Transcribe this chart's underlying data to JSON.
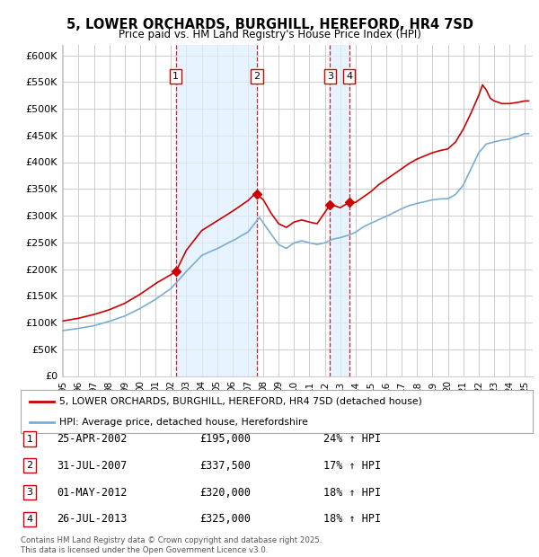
{
  "title": "5, LOWER ORCHARDS, BURGHILL, HEREFORD, HR4 7SD",
  "subtitle": "Price paid vs. HM Land Registry's House Price Index (HPI)",
  "ylim": [
    0,
    620000
  ],
  "yticks": [
    0,
    50000,
    100000,
    150000,
    200000,
    250000,
    300000,
    350000,
    400000,
    450000,
    500000,
    550000,
    600000
  ],
  "ytick_labels": [
    "£0",
    "£50K",
    "£100K",
    "£150K",
    "£200K",
    "£250K",
    "£300K",
    "£350K",
    "£400K",
    "£450K",
    "£500K",
    "£550K",
    "£600K"
  ],
  "xlim_start": 1994.92,
  "xlim_end": 2025.5,
  "xtick_years": [
    1995,
    1996,
    1997,
    1998,
    1999,
    2000,
    2001,
    2002,
    2003,
    2004,
    2005,
    2006,
    2007,
    2008,
    2009,
    2010,
    2011,
    2012,
    2013,
    2014,
    2015,
    2016,
    2017,
    2018,
    2019,
    2020,
    2021,
    2022,
    2023,
    2024,
    2025
  ],
  "sale_color": "#cc0000",
  "hpi_color": "#7aadd4",
  "background_color": "#ffffff",
  "plot_bg_color": "#ffffff",
  "grid_color": "#cccccc",
  "shade_color": "#ddeeff",
  "transactions": [
    {
      "num": 1,
      "date": "25-APR-2002",
      "price": 195000,
      "hpi_pct": "24%",
      "x": 2002.32
    },
    {
      "num": 2,
      "date": "31-JUL-2007",
      "price": 337500,
      "hpi_pct": "17%",
      "x": 2007.58
    },
    {
      "num": 3,
      "date": "01-MAY-2012",
      "price": 320000,
      "hpi_pct": "18%",
      "x": 2012.33
    },
    {
      "num": 4,
      "date": "26-JUL-2013",
      "price": 325000,
      "hpi_pct": "18%",
      "x": 2013.58
    }
  ],
  "legend_line1": "5, LOWER ORCHARDS, BURGHILL, HEREFORD, HR4 7SD (detached house)",
  "legend_line2": "HPI: Average price, detached house, Herefordshire",
  "footer": "Contains HM Land Registry data © Crown copyright and database right 2025.\nThis data is licensed under the Open Government Licence v3.0."
}
